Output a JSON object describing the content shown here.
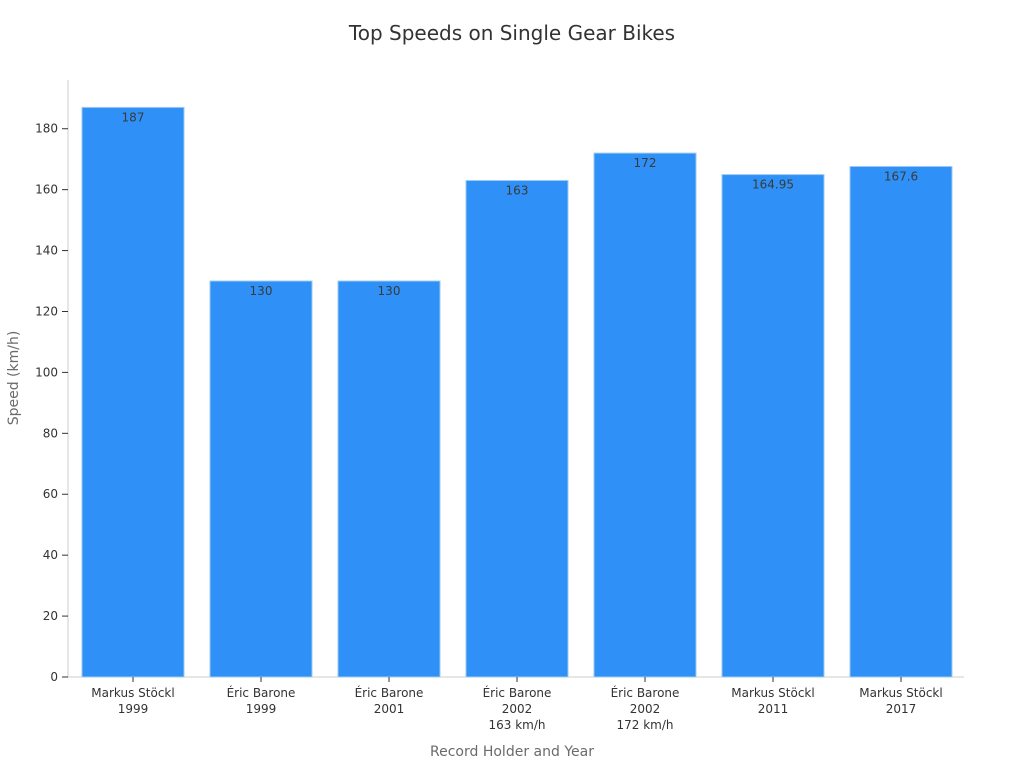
{
  "chart_data": {
    "type": "bar",
    "title": "Top Speeds on Single Gear Bikes",
    "xlabel": "Record Holder and Year",
    "ylabel": "Speed (km/h)",
    "ylim": [
      0,
      196
    ],
    "yticks": [
      0,
      20,
      40,
      60,
      80,
      100,
      120,
      140,
      160,
      180
    ],
    "categories": [
      [
        "Markus Stöckl",
        "1999"
      ],
      [
        "Éric Barone",
        "1999"
      ],
      [
        "Éric Barone",
        "2001"
      ],
      [
        "Éric Barone",
        "2002",
        "163 km/h"
      ],
      [
        "Éric Barone",
        "2002",
        "172 km/h"
      ],
      [
        "Markus Stöckl",
        "2011"
      ],
      [
        "Markus Stöckl",
        "2017"
      ]
    ],
    "values": [
      187,
      130,
      130,
      163,
      172,
      164.95,
      167.6
    ],
    "data_labels": [
      "187",
      "130",
      "130",
      "163",
      "172",
      "164.95",
      "167.6"
    ],
    "grid": false,
    "legend": "none",
    "colors": {
      "bar": "#2f91f7",
      "bar_edge": "#9cc9f5",
      "axis": "#cccccc",
      "text": "#333333",
      "axis_title": "#6b6b6b"
    }
  }
}
